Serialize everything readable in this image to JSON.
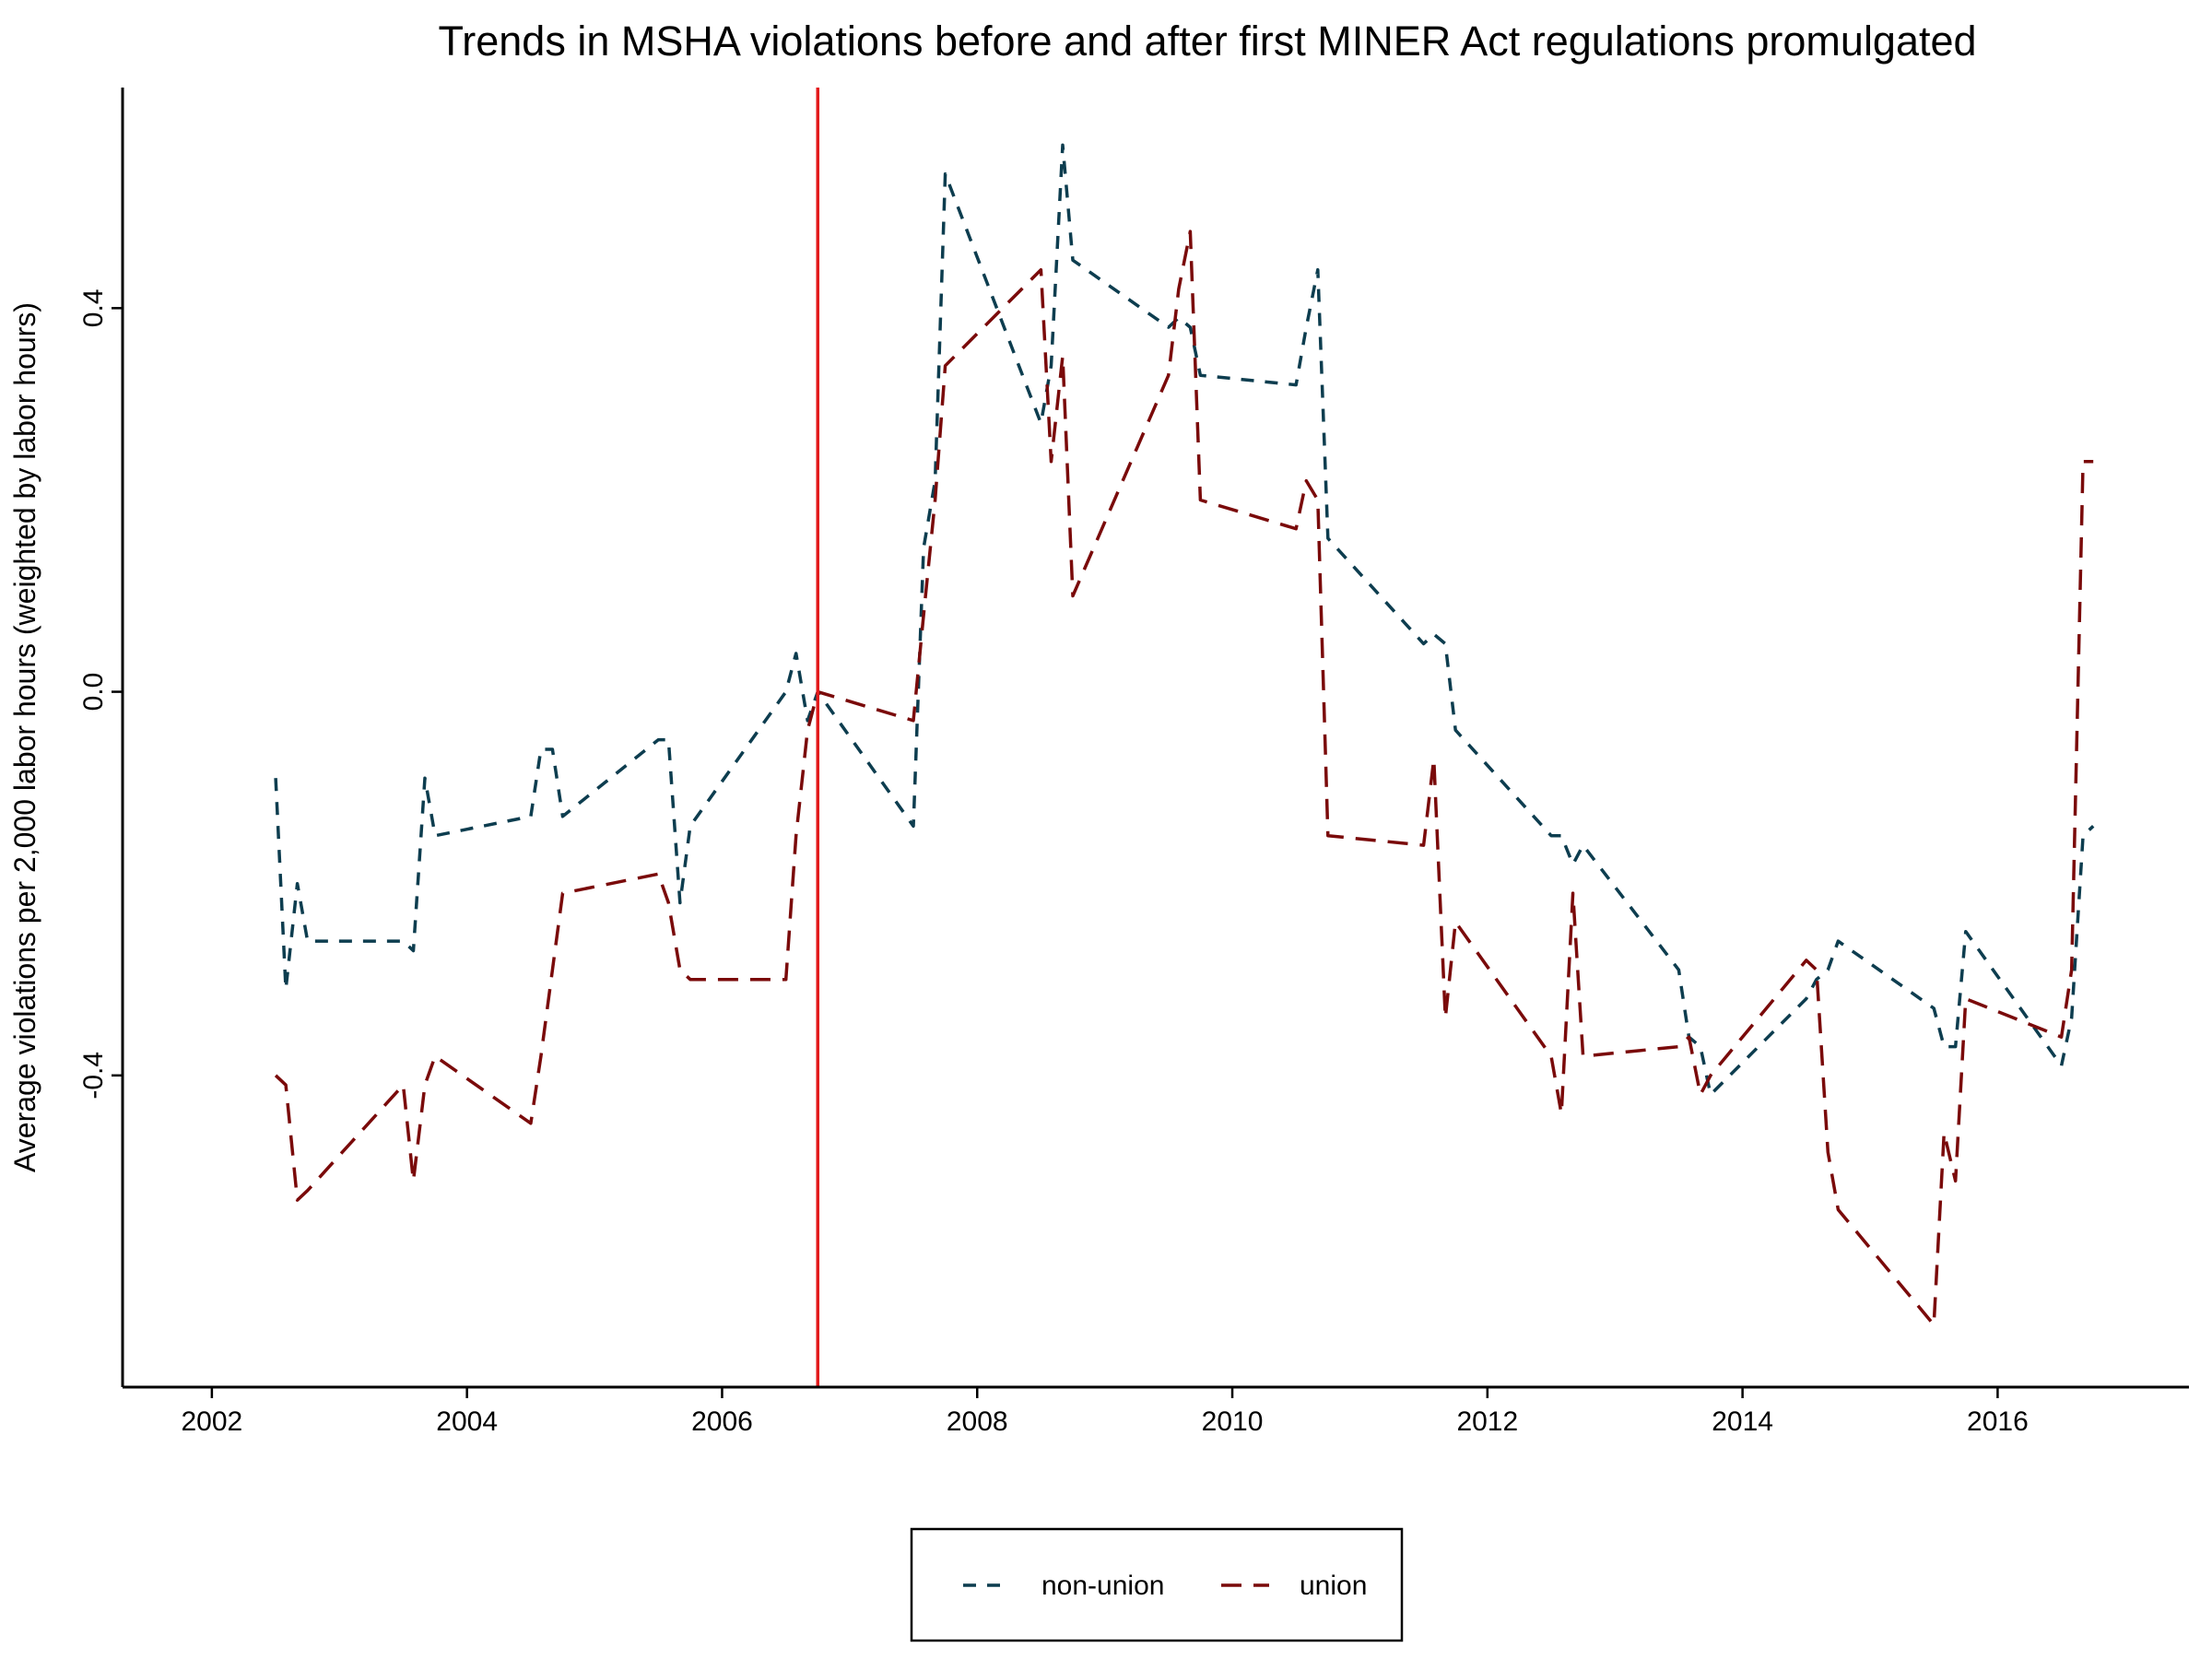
{
  "chart_data": {
    "type": "line",
    "title": "Trends in MSHA violations before and after first MINER Act regulations promulgated",
    "xlabel": "",
    "ylabel": "Average violations per 2,000 labor hours (weighted by labor hours)",
    "xlim": [
      2001.3,
      2017.5
    ],
    "ylim": [
      -0.725,
      0.63
    ],
    "x_ticks": [
      2002,
      2004,
      2006,
      2008,
      2010,
      2012,
      2014,
      2016
    ],
    "x_tick_labels": [
      "2002",
      "2004",
      "2006",
      "2008",
      "2010",
      "2012",
      "2014",
      "2016"
    ],
    "y_ticks": [
      -0.4,
      0.0,
      0.4
    ],
    "y_tick_labels": [
      "-0.4",
      "0.0",
      "0.4"
    ],
    "grid": false,
    "legend_position": "bottom",
    "reference_line": {
      "x": 2006.75,
      "color": "#e31a1c"
    },
    "series": [
      {
        "name": "non-union",
        "color": "#0d3d4f",
        "dash": "short",
        "points": [
          [
            2002.5,
            -0.09
          ],
          [
            2002.58,
            -0.31
          ],
          [
            2002.67,
            -0.2
          ],
          [
            2002.75,
            -0.26
          ],
          [
            2003.5,
            -0.26
          ],
          [
            2003.58,
            -0.27
          ],
          [
            2003.67,
            -0.09
          ],
          [
            2003.75,
            -0.15
          ],
          [
            2004.5,
            -0.13
          ],
          [
            2004.58,
            -0.06
          ],
          [
            2004.67,
            -0.06
          ],
          [
            2004.75,
            -0.13
          ],
          [
            2005.5,
            -0.05
          ],
          [
            2005.58,
            -0.05
          ],
          [
            2005.67,
            -0.22
          ],
          [
            2005.75,
            -0.14
          ],
          [
            2006.5,
            0.0
          ],
          [
            2006.58,
            0.04
          ],
          [
            2006.67,
            -0.03
          ],
          [
            2006.75,
            0.0
          ],
          [
            2007.5,
            -0.14
          ],
          [
            2007.58,
            0.15
          ],
          [
            2007.67,
            0.22
          ],
          [
            2007.75,
            0.54
          ],
          [
            2008.5,
            0.28
          ],
          [
            2008.58,
            0.34
          ],
          [
            2008.67,
            0.57
          ],
          [
            2008.75,
            0.45
          ],
          [
            2009.5,
            0.38
          ],
          [
            2009.58,
            0.39
          ],
          [
            2009.67,
            0.38
          ],
          [
            2009.75,
            0.33
          ],
          [
            2010.5,
            0.32
          ],
          [
            2010.58,
            0.38
          ],
          [
            2010.67,
            0.44
          ],
          [
            2010.75,
            0.16
          ],
          [
            2011.5,
            0.05
          ],
          [
            2011.58,
            0.06
          ],
          [
            2011.67,
            0.05
          ],
          [
            2011.75,
            -0.04
          ],
          [
            2012.5,
            -0.15
          ],
          [
            2012.58,
            -0.15
          ],
          [
            2012.67,
            -0.18
          ],
          [
            2012.75,
            -0.16
          ],
          [
            2013.5,
            -0.29
          ],
          [
            2013.58,
            -0.36
          ],
          [
            2013.67,
            -0.37
          ],
          [
            2013.75,
            -0.42
          ],
          [
            2014.5,
            -0.32
          ],
          [
            2014.58,
            -0.3
          ],
          [
            2014.67,
            -0.29
          ],
          [
            2014.75,
            -0.26
          ],
          [
            2015.5,
            -0.33
          ],
          [
            2015.58,
            -0.37
          ],
          [
            2015.67,
            -0.37
          ],
          [
            2015.75,
            -0.25
          ],
          [
            2016.5,
            -0.39
          ],
          [
            2016.58,
            -0.34
          ],
          [
            2016.67,
            -0.15
          ],
          [
            2016.75,
            -0.14
          ]
        ]
      },
      {
        "name": "union",
        "color": "#7a0a0a",
        "dash": "long",
        "points": [
          [
            2002.5,
            -0.4
          ],
          [
            2002.58,
            -0.41
          ],
          [
            2002.67,
            -0.53
          ],
          [
            2002.75,
            -0.52
          ],
          [
            2003.5,
            -0.41
          ],
          [
            2003.58,
            -0.51
          ],
          [
            2003.67,
            -0.41
          ],
          [
            2003.75,
            -0.38
          ],
          [
            2004.5,
            -0.45
          ],
          [
            2004.58,
            -0.38
          ],
          [
            2004.67,
            -0.29
          ],
          [
            2004.75,
            -0.21
          ],
          [
            2005.5,
            -0.19
          ],
          [
            2005.58,
            -0.22
          ],
          [
            2005.67,
            -0.29
          ],
          [
            2005.75,
            -0.3
          ],
          [
            2006.5,
            -0.3
          ],
          [
            2006.58,
            -0.15
          ],
          [
            2006.67,
            -0.04
          ],
          [
            2006.75,
            0.0
          ],
          [
            2007.5,
            -0.03
          ],
          [
            2007.58,
            0.08
          ],
          [
            2007.67,
            0.2
          ],
          [
            2007.75,
            0.34
          ],
          [
            2008.5,
            0.44
          ],
          [
            2008.58,
            0.24
          ],
          [
            2008.67,
            0.35
          ],
          [
            2008.75,
            0.1
          ],
          [
            2009.5,
            0.33
          ],
          [
            2009.58,
            0.42
          ],
          [
            2009.67,
            0.48
          ],
          [
            2009.75,
            0.2
          ],
          [
            2010.5,
            0.17
          ],
          [
            2010.58,
            0.22
          ],
          [
            2010.67,
            0.2
          ],
          [
            2010.75,
            -0.15
          ],
          [
            2011.5,
            -0.16
          ],
          [
            2011.58,
            -0.07
          ],
          [
            2011.67,
            -0.34
          ],
          [
            2011.75,
            -0.24
          ],
          [
            2012.5,
            -0.38
          ],
          [
            2012.58,
            -0.44
          ],
          [
            2012.67,
            -0.21
          ],
          [
            2012.75,
            -0.38
          ],
          [
            2013.5,
            -0.37
          ],
          [
            2013.58,
            -0.36
          ],
          [
            2013.67,
            -0.42
          ],
          [
            2013.75,
            -0.4
          ],
          [
            2014.5,
            -0.28
          ],
          [
            2014.58,
            -0.29
          ],
          [
            2014.67,
            -0.48
          ],
          [
            2014.75,
            -0.54
          ],
          [
            2015.5,
            -0.66
          ],
          [
            2015.58,
            -0.46
          ],
          [
            2015.67,
            -0.51
          ],
          [
            2015.75,
            -0.32
          ],
          [
            2016.5,
            -0.36
          ],
          [
            2016.58,
            -0.29
          ],
          [
            2016.67,
            0.24
          ],
          [
            2016.75,
            0.24
          ]
        ]
      }
    ]
  }
}
